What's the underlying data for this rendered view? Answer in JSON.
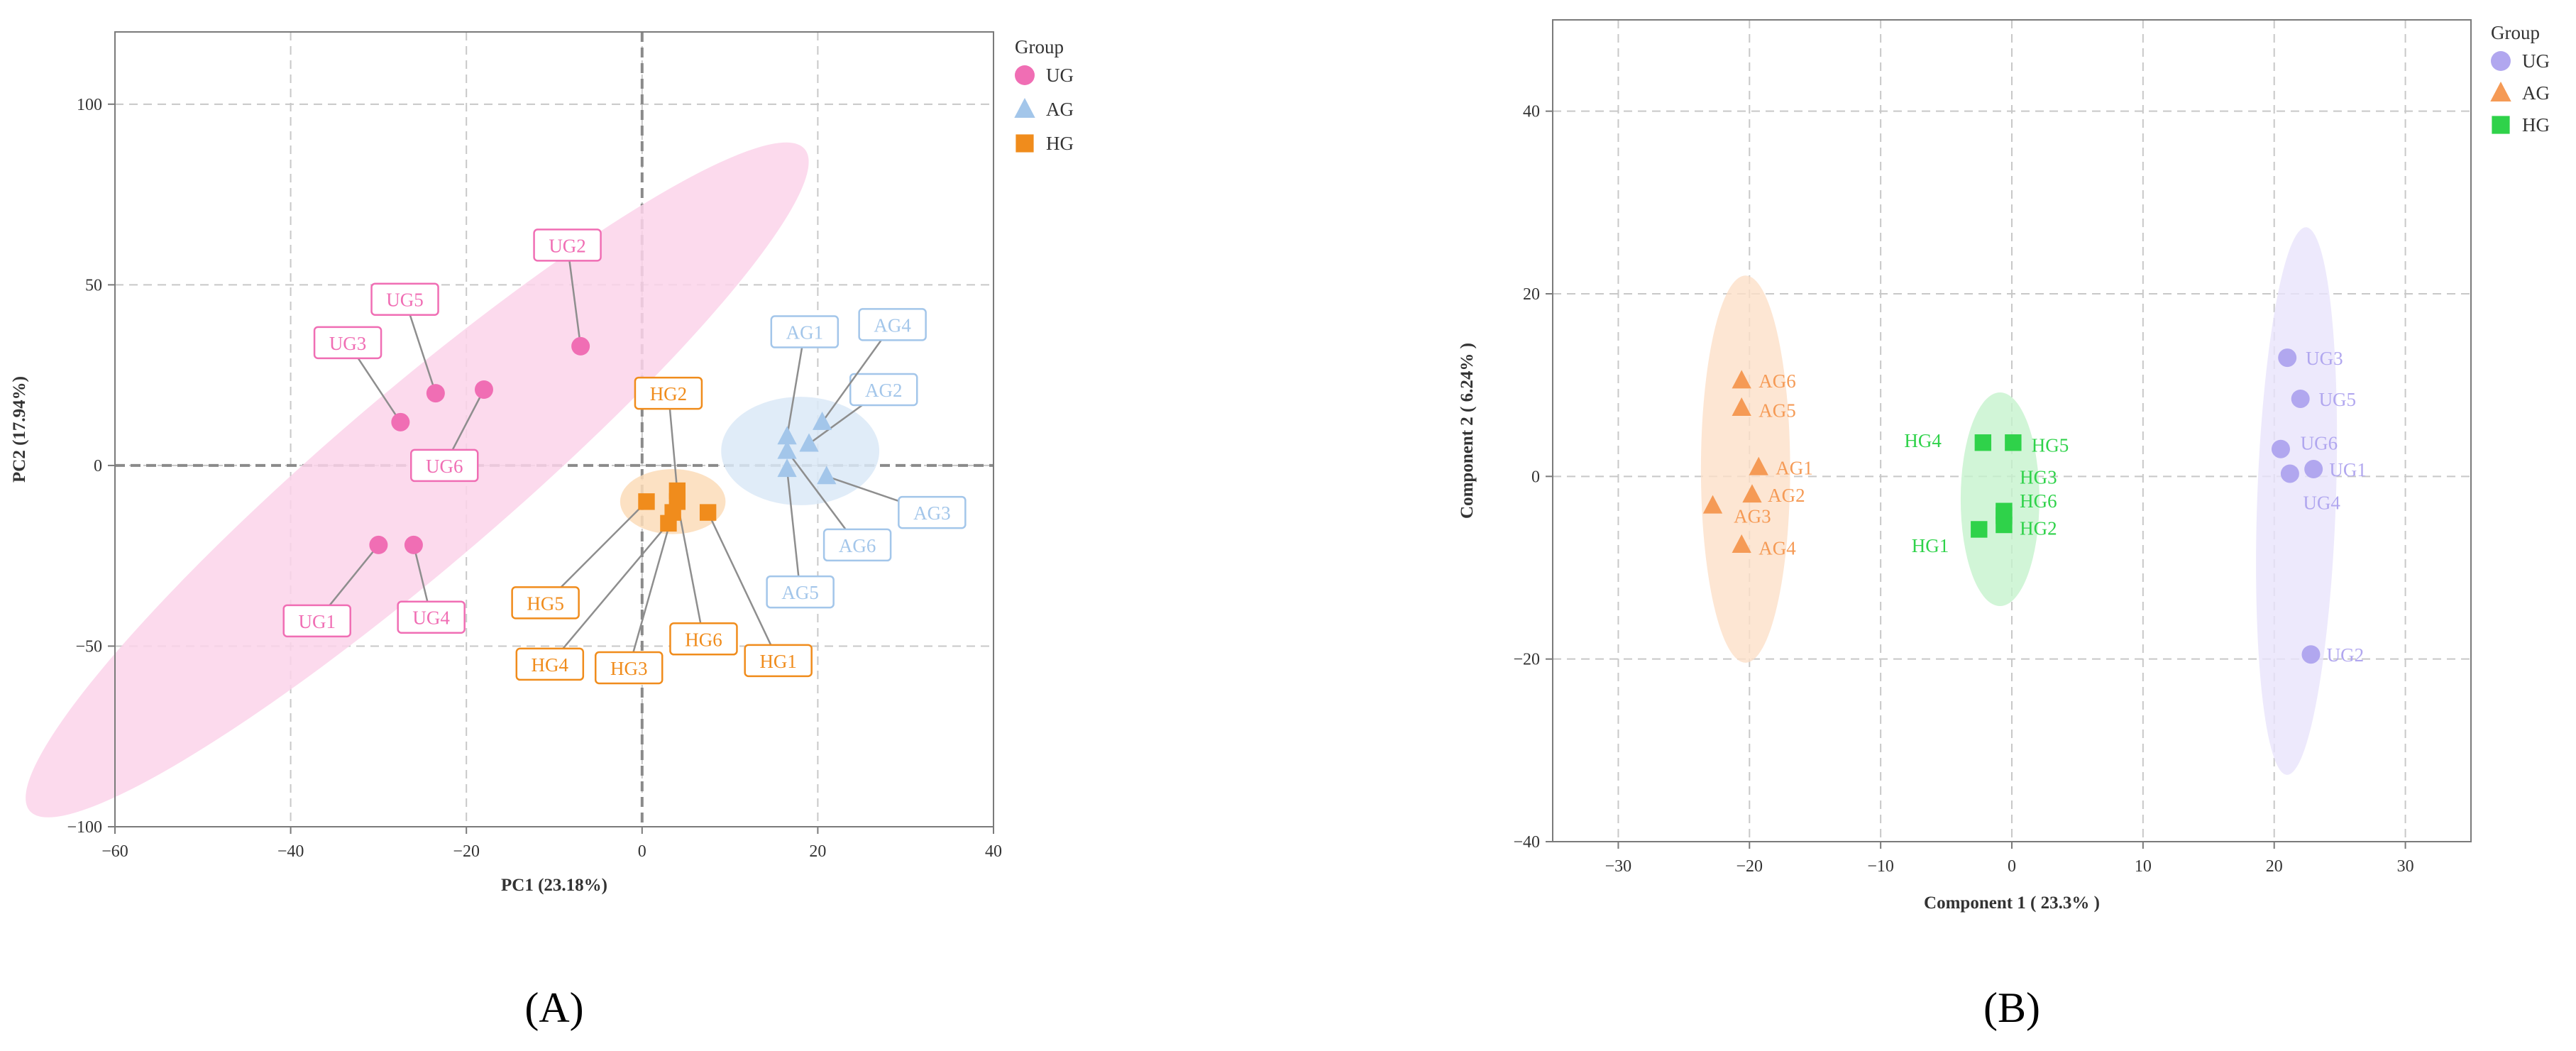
{
  "chart_data": [
    {
      "type": "scatter",
      "panel_label": "(A)",
      "xlabel": "PC1 (23.18%)",
      "ylabel": "PC2 (17.94%)",
      "xlim": [
        -60,
        40
      ],
      "ylim": [
        -100,
        120
      ],
      "xticks": [
        -60,
        -40,
        -20,
        0,
        20,
        40
      ],
      "yticks": [
        -100,
        -50,
        0,
        50,
        100
      ],
      "tick_labels_x": [
        "−60",
        "−40",
        "−20",
        "0",
        "20",
        "40"
      ],
      "tick_labels_y": [
        "−100",
        "−50",
        "0",
        "50",
        "100"
      ],
      "grid": true,
      "legend": {
        "title": "Group",
        "position": "right",
        "entries": [
          "UG",
          "AG",
          "HG"
        ]
      },
      "series": [
        {
          "name": "UG",
          "marker": "circle",
          "color": "#f06eb4",
          "ellipse_color": "#fbd3ea",
          "ellipse": {
            "cx": -25.6,
            "cy": -4,
            "rx": 58,
            "ry": 24,
            "angle_deg": 40.5
          },
          "points": [
            {
              "label": "UG1",
              "x": -30,
              "y": -22,
              "label_x": -37,
              "label_y": -43
            },
            {
              "label": "UG2",
              "x": -7,
              "y": 33,
              "label_x": -8.5,
              "label_y": 61
            },
            {
              "label": "UG3",
              "x": -27.5,
              "y": 12,
              "label_x": -33.5,
              "label_y": 34
            },
            {
              "label": "UG4",
              "x": -26,
              "y": -22,
              "label_x": -24,
              "label_y": -42
            },
            {
              "label": "UG5",
              "x": -23.5,
              "y": 20,
              "label_x": -27,
              "label_y": 46
            },
            {
              "label": "UG6",
              "x": -18,
              "y": 21,
              "label_x": -22.5,
              "label_y": 0
            }
          ]
        },
        {
          "name": "AG",
          "marker": "triangle",
          "color": "#a3c6ea",
          "ellipse_color": "#dbe9f7",
          "ellipse": {
            "cx": 18,
            "cy": 4,
            "rx": 9,
            "ry": 15,
            "angle_deg": 0
          },
          "points": [
            {
              "label": "AG1",
              "x": 16.5,
              "y": 8,
              "label_x": 18.5,
              "label_y": 37
            },
            {
              "label": "AG2",
              "x": 19,
              "y": 6,
              "label_x": 27.5,
              "label_y": 21
            },
            {
              "label": "AG3",
              "x": 21,
              "y": -3,
              "label_x": 33,
              "label_y": -13
            },
            {
              "label": "AG4",
              "x": 20.5,
              "y": 12,
              "label_x": 28.5,
              "label_y": 39
            },
            {
              "label": "AG5",
              "x": 16.5,
              "y": -1,
              "label_x": 18,
              "label_y": -35
            },
            {
              "label": "AG6",
              "x": 16.5,
              "y": 4,
              "label_x": 24.5,
              "label_y": -22
            }
          ]
        },
        {
          "name": "HG",
          "marker": "square",
          "color": "#f08c1c",
          "ellipse_color": "#fbdcb8",
          "ellipse": {
            "cx": 3.5,
            "cy": -10,
            "rx": 6,
            "ry": 9,
            "angle_deg": 0
          },
          "points": [
            {
              "label": "HG1",
              "x": 7.5,
              "y": -13,
              "label_x": 15.5,
              "label_y": -54
            },
            {
              "label": "HG2",
              "x": 4,
              "y": -7,
              "label_x": 3,
              "label_y": 20
            },
            {
              "label": "HG3",
              "x": 3.5,
              "y": -13,
              "label_x": -1.5,
              "label_y": -56
            },
            {
              "label": "HG4",
              "x": 3,
              "y": -16,
              "label_x": -10.5,
              "label_y": -55
            },
            {
              "label": "HG5",
              "x": 0.5,
              "y": -10,
              "label_x": -11,
              "label_y": -38
            },
            {
              "label": "HG6",
              "x": 4,
              "y": -10,
              "label_x": 7,
              "label_y": -48
            }
          ]
        }
      ]
    },
    {
      "type": "scatter",
      "panel_label": "(B)",
      "xlabel": "Component 1 ( 23.3% )",
      "ylabel": "Component 2 ( 6.24% )",
      "xlim": [
        -35,
        35
      ],
      "ylim": [
        -40,
        50
      ],
      "xticks": [
        -30,
        -20,
        -10,
        0,
        10,
        20,
        30
      ],
      "yticks": [
        -40,
        -20,
        0,
        20,
        40
      ],
      "tick_labels_x": [
        "−30",
        "−20",
        "−10",
        "0",
        "10",
        "20",
        "30"
      ],
      "tick_labels_y": [
        "−40",
        "−20",
        "0",
        "20",
        "40"
      ],
      "grid": true,
      "legend": {
        "title": "Group",
        "position": "right",
        "entries": [
          "UG",
          "AG",
          "HG"
        ]
      },
      "series": [
        {
          "name": "UG",
          "marker": "circle",
          "color": "#b1a7ef",
          "ellipse_color": "#e8e4fb",
          "ellipse": {
            "cx": 21.7,
            "cy": -2.7,
            "rx": 3,
            "ry": 30,
            "angle_deg": -2
          },
          "points": [
            {
              "label": "UG1",
              "x": 23,
              "y": 0.8,
              "label_x": 24.2,
              "label_y": 0.8,
              "anchor": "start"
            },
            {
              "label": "UG2",
              "x": 22.8,
              "y": -19.5,
              "label_x": 24,
              "label_y": -19.5,
              "anchor": "start"
            },
            {
              "label": "UG3",
              "x": 21,
              "y": 13,
              "label_x": 22.4,
              "label_y": 13,
              "anchor": "start"
            },
            {
              "label": "UG4",
              "x": 21.2,
              "y": 0.3,
              "label_x": 22.2,
              "label_y": -2.8,
              "anchor": "start"
            },
            {
              "label": "UG5",
              "x": 22,
              "y": 8.5,
              "label_x": 23.4,
              "label_y": 8.5,
              "anchor": "start"
            },
            {
              "label": "UG6",
              "x": 20.5,
              "y": 3,
              "label_x": 22,
              "label_y": 3.7,
              "anchor": "start"
            }
          ]
        },
        {
          "name": "AG",
          "marker": "triangle",
          "color": "#f59a55",
          "ellipse_color": "#fde0c8",
          "ellipse": {
            "cx": -20.3,
            "cy": 0.8,
            "rx": 3.4,
            "ry": 21.2,
            "angle_deg": 0
          },
          "points": [
            {
              "label": "AG1",
              "x": -19.3,
              "y": 1,
              "label_x": -18,
              "label_y": 1,
              "anchor": "start"
            },
            {
              "label": "AG2",
              "x": -19.8,
              "y": -2,
              "label_x": -18.6,
              "label_y": -2,
              "anchor": "start"
            },
            {
              "label": "AG3",
              "x": -22.8,
              "y": -3.2,
              "label_x": -21.2,
              "label_y": -4.3,
              "anchor": "start"
            },
            {
              "label": "AG4",
              "x": -20.6,
              "y": -7.5,
              "label_x": -19.3,
              "label_y": -7.8,
              "anchor": "start"
            },
            {
              "label": "AG5",
              "x": -20.6,
              "y": 7.5,
              "label_x": -19.3,
              "label_y": 7.3,
              "anchor": "start"
            },
            {
              "label": "AG6",
              "x": -20.6,
              "y": 10.5,
              "label_x": -19.3,
              "label_y": 10.5,
              "anchor": "start"
            }
          ]
        },
        {
          "name": "HG",
          "marker": "square",
          "color": "#2fd24a",
          "ellipse_color": "#c6f2cd",
          "ellipse": {
            "cx": -0.9,
            "cy": -2.5,
            "rx": 3,
            "ry": 11.7,
            "angle_deg": 0
          },
          "points": [
            {
              "label": "HG1",
              "x": -2.5,
              "y": -5.8,
              "label_x": -4.8,
              "label_y": -7.5,
              "anchor": "end"
            },
            {
              "label": "HG2",
              "x": -0.6,
              "y": -5.3,
              "label_x": 0.6,
              "label_y": -5.6,
              "anchor": "start"
            },
            {
              "label": "HG3",
              "x": -0.6,
              "y": -3.8,
              "label_x": 0.6,
              "label_y": 0,
              "anchor": "start"
            },
            {
              "label": "HG4",
              "x": -2.2,
              "y": 3.7,
              "label_x": -8.2,
              "label_y": 4,
              "anchor": "start"
            },
            {
              "label": "HG5",
              "x": 0.1,
              "y": 3.7,
              "label_x": 1.5,
              "label_y": 3.5,
              "anchor": "start"
            },
            {
              "label": "HG6",
              "x": -0.6,
              "y": -4.3,
              "label_x": 0.6,
              "label_y": -2.6,
              "anchor": "start"
            }
          ]
        }
      ]
    }
  ]
}
